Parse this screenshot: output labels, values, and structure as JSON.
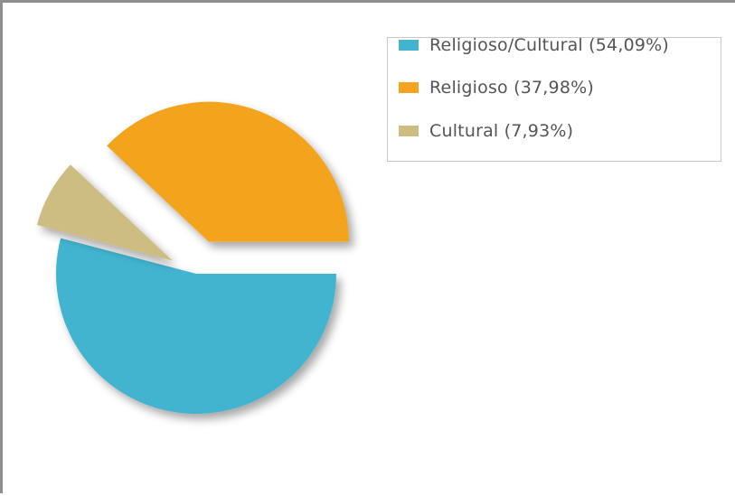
{
  "chart_data": {
    "type": "pie",
    "categories": [
      "Religioso/Cultural",
      "Religioso",
      "Cultural"
    ],
    "values": [
      54.09,
      37.98,
      7.93
    ],
    "colors": [
      "#42b4cf",
      "#f4a41f",
      "#cdbd80"
    ],
    "exploded": true,
    "legend_position": "top-right",
    "legend": [
      "Religioso/Cultural (54,09%)",
      "Religioso (37,98%)",
      "Cultural (7,93%)"
    ]
  }
}
